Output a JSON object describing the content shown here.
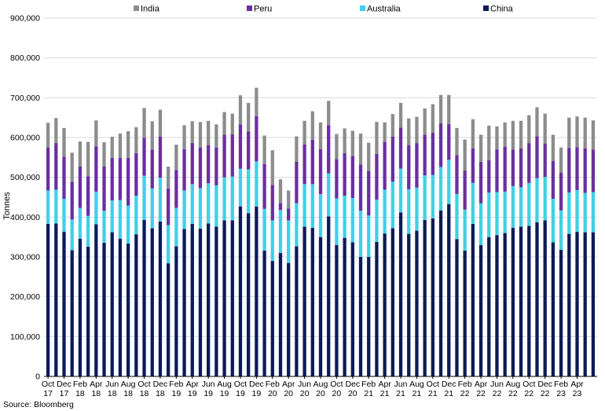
{
  "chart_data": {
    "type": "bar",
    "stacked": true,
    "ylabel": "Tonnes",
    "ylim": [
      0,
      900000
    ],
    "yticks": [
      0,
      100000,
      200000,
      300000,
      400000,
      500000,
      600000,
      700000,
      800000,
      900000
    ],
    "ytick_labels": [
      "0",
      "100,000",
      "200,000",
      "300,000",
      "400,000",
      "500,000",
      "600,000",
      "700,000",
      "800,000",
      "900,000"
    ],
    "grid": true,
    "legend_position": "top",
    "x_tick_labels": [
      {
        "month": "Oct",
        "year": "17"
      },
      {
        "month": "Dec",
        "year": "17"
      },
      {
        "month": "Feb",
        "year": "18"
      },
      {
        "month": "Apr",
        "year": "18"
      },
      {
        "month": "Jun",
        "year": "18"
      },
      {
        "month": "Aug",
        "year": "18"
      },
      {
        "month": "Oct",
        "year": "18"
      },
      {
        "month": "Dec",
        "year": "18"
      },
      {
        "month": "Feb",
        "year": "19"
      },
      {
        "month": "Apr",
        "year": "19"
      },
      {
        "month": "Jun",
        "year": "19"
      },
      {
        "month": "Aug",
        "year": "19"
      },
      {
        "month": "Oct",
        "year": "19"
      },
      {
        "month": "Dec",
        "year": "19"
      },
      {
        "month": "Feb",
        "year": "20"
      },
      {
        "month": "Apr",
        "year": "20"
      },
      {
        "month": "Jun",
        "year": "20"
      },
      {
        "month": "Aug",
        "year": "20"
      },
      {
        "month": "Oct",
        "year": "20"
      },
      {
        "month": "Dec",
        "year": "20"
      },
      {
        "month": "Feb",
        "year": "21"
      },
      {
        "month": "Apr",
        "year": "21"
      },
      {
        "month": "Jun",
        "year": "21"
      },
      {
        "month": "Aug",
        "year": "21"
      },
      {
        "month": "Oct",
        "year": "21"
      },
      {
        "month": "Dec",
        "year": "21"
      },
      {
        "month": "Feb",
        "year": "22"
      },
      {
        "month": "Apr",
        "year": "22"
      },
      {
        "month": "Jun",
        "year": "22"
      },
      {
        "month": "Aug",
        "year": "22"
      },
      {
        "month": "Oct",
        "year": "22"
      },
      {
        "month": "Dec",
        "year": "22"
      },
      {
        "month": "Feb",
        "year": "23"
      },
      {
        "month": "Apr",
        "year": "23"
      }
    ],
    "categories": [
      "Oct 17",
      "Nov 17",
      "Dec 17",
      "Jan 18",
      "Feb 18",
      "Mar 18",
      "Apr 18",
      "May 18",
      "Jun 18",
      "Jul 18",
      "Aug 18",
      "Sep 18",
      "Oct 18",
      "Nov 18",
      "Dec 18",
      "Jan 19",
      "Feb 19",
      "Mar 19",
      "Apr 19",
      "May 19",
      "Jun 19",
      "Jul 19",
      "Aug 19",
      "Sep 19",
      "Oct 19",
      "Nov 19",
      "Dec 19",
      "Jan 20",
      "Feb 20",
      "Mar 20",
      "Apr 20",
      "May 20",
      "Jun 20",
      "Jul 20",
      "Aug 20",
      "Sep 20",
      "Oct 20",
      "Nov 20",
      "Dec 20",
      "Jan 21",
      "Feb 21",
      "Mar 21",
      "Apr 21",
      "May 21",
      "Jun 21",
      "Jul 21",
      "Aug 21",
      "Sep 21",
      "Oct 21",
      "Nov 21",
      "Dec 21",
      "Jan 22",
      "Feb 22",
      "Mar 22",
      "Apr 22",
      "May 22",
      "Jun 22",
      "Jul 22",
      "Aug 22",
      "Sep 22",
      "Oct 22",
      "Nov 22",
      "Dec 22",
      "Jan 23",
      "Feb 23",
      "Mar 23",
      "Apr 23",
      "May 23",
      "Jun 23"
    ],
    "series": [
      {
        "name": "China",
        "color": "#0b1a5b",
        "values": [
          383000,
          384000,
          363000,
          317000,
          346000,
          326000,
          382000,
          336000,
          362000,
          346000,
          334000,
          357000,
          393000,
          372000,
          389000,
          284000,
          327000,
          370000,
          383000,
          371000,
          384000,
          376000,
          392000,
          392000,
          427000,
          410000,
          427000,
          316000,
          290000,
          310000,
          285000,
          327000,
          376000,
          373000,
          350000,
          402000,
          330000,
          348000,
          337000,
          300000,
          300000,
          338000,
          359000,
          372000,
          412000,
          358000,
          366000,
          393000,
          397000,
          417000,
          433000,
          345000,
          316000,
          383000,
          330000,
          350000,
          355000,
          360000,
          373000,
          376000,
          378000,
          387000,
          392000,
          337000,
          318000,
          358000,
          363000,
          362000,
          362000
        ]
      },
      {
        "name": "Australia",
        "color": "#3fd0ea",
        "values": [
          84000,
          85000,
          83000,
          77000,
          77000,
          77000,
          82000,
          80000,
          80000,
          97000,
          95000,
          97000,
          111000,
          100000,
          110000,
          96000,
          96000,
          97000,
          100000,
          102000,
          101000,
          104000,
          108000,
          110000,
          95000,
          110000,
          113000,
          105000,
          102000,
          108000,
          107000,
          108000,
          107000,
          110000,
          108000,
          108000,
          117000,
          106000,
          111000,
          116000,
          104000,
          106000,
          110000,
          117000,
          110000,
          112000,
          108000,
          112000,
          109000,
          109000,
          111000,
          113000,
          103000,
          103000,
          105000,
          112000,
          108000,
          104000,
          105000,
          99000,
          108000,
          111000,
          109000,
          109000,
          99000,
          104000,
          105000,
          99000,
          101000
        ]
      },
      {
        "name": "Peru",
        "color": "#6a2fa2",
        "values": [
          108000,
          117000,
          106000,
          95000,
          104000,
          100000,
          114000,
          111000,
          107000,
          106000,
          120000,
          107000,
          95000,
          98000,
          103000,
          92000,
          95000,
          104000,
          103000,
          102000,
          96000,
          95000,
          107000,
          106000,
          111000,
          95000,
          114000,
          112000,
          89000,
          17000,
          30000,
          104000,
          100000,
          111000,
          113000,
          121000,
          99000,
          107000,
          106000,
          116000,
          112000,
          115000,
          120000,
          113000,
          103000,
          111000,
          112000,
          102000,
          106000,
          110000,
          90000,
          98000,
          98000,
          87000,
          104000,
          81000,
          107000,
          113000,
          92000,
          98000,
          100000,
          105000,
          84000,
          95000,
          95000,
          112000,
          108000,
          112000,
          107000
        ]
      },
      {
        "name": "India",
        "color": "#8c8c8c",
        "values": [
          62000,
          63000,
          72000,
          73000,
          63000,
          86000,
          65000,
          61000,
          53000,
          61000,
          67000,
          65000,
          75000,
          71000,
          68000,
          55000,
          64000,
          60000,
          55000,
          64000,
          61000,
          58000,
          57000,
          52000,
          73000,
          72000,
          71000,
          72000,
          87000,
          60000,
          45000,
          64000,
          59000,
          72000,
          67000,
          61000,
          63000,
          62000,
          63000,
          78000,
          71000,
          80000,
          49000,
          57000,
          62000,
          67000,
          66000,
          66000,
          72000,
          71000,
          73000,
          68000,
          78000,
          73000,
          68000,
          87000,
          58000,
          61000,
          72000,
          69000,
          70000,
          73000,
          75000,
          66000,
          63000,
          76000,
          77000,
          77000,
          73000
        ]
      }
    ]
  },
  "source": "Source: Bloomberg"
}
